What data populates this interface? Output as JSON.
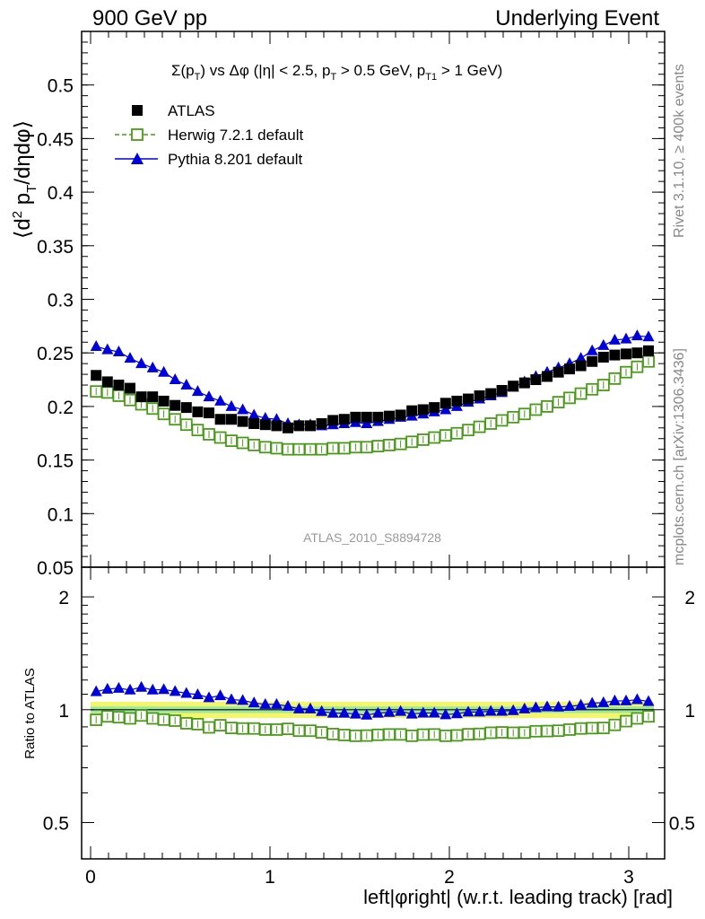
{
  "header": {
    "left": "900 GeV pp",
    "right": "Underlying Event"
  },
  "side_labels": {
    "rivet": "Rivet 3.1.10, ≥ 400k events",
    "mcplots": "mcplots.cern.ch [arXiv:1306.3436]"
  },
  "plot_title": "Σ(p_T) vs Δφ (|η| < 2.5, p_T > 0.5 GeV, p_T1 > 1 GeV)",
  "analysis_id": "ATLAS_2010_S8894728",
  "colors": {
    "data": "#000000",
    "herwig": "#4a9a1a",
    "pythia": "#0000dd",
    "band_outer": "#f5f56a",
    "band_inner": "#9ee89e"
  },
  "chart_data": [
    {
      "type": "scatter",
      "panel": "main",
      "ylabel": "⟨d² p_T/dηdφ⟩",
      "ylim": [
        0.05,
        0.55
      ],
      "yticks": [
        "0.05",
        "0.1",
        "0.15",
        "0.2",
        "0.25",
        "0.3",
        "0.35",
        "0.4",
        "0.45",
        "0.5"
      ],
      "xlim": [
        -0.05,
        3.2
      ],
      "legend_position": "top-left",
      "x": [
        0.031,
        0.094,
        0.157,
        0.22,
        0.283,
        0.346,
        0.408,
        0.471,
        0.534,
        0.597,
        0.66,
        0.723,
        0.785,
        0.848,
        0.911,
        0.974,
        1.037,
        1.1,
        1.162,
        1.225,
        1.288,
        1.351,
        1.414,
        1.477,
        1.539,
        1.602,
        1.665,
        1.728,
        1.791,
        1.854,
        1.916,
        1.979,
        2.042,
        2.105,
        2.168,
        2.231,
        2.293,
        2.356,
        2.419,
        2.482,
        2.545,
        2.608,
        2.67,
        2.733,
        2.796,
        2.859,
        2.922,
        2.985,
        3.047,
        3.11
      ],
      "series": [
        {
          "name": "ATLAS",
          "marker": "filled-square",
          "values": [
            0.229,
            0.223,
            0.22,
            0.217,
            0.209,
            0.209,
            0.205,
            0.201,
            0.199,
            0.195,
            0.194,
            0.188,
            0.188,
            0.186,
            0.184,
            0.183,
            0.182,
            0.18,
            0.182,
            0.182,
            0.184,
            0.187,
            0.188,
            0.19,
            0.19,
            0.19,
            0.191,
            0.192,
            0.196,
            0.197,
            0.199,
            0.203,
            0.205,
            0.207,
            0.21,
            0.212,
            0.215,
            0.219,
            0.222,
            0.225,
            0.228,
            0.232,
            0.235,
            0.238,
            0.242,
            0.246,
            0.248,
            0.249,
            0.25,
            0.252
          ]
        },
        {
          "name": "Herwig 7.2.1 default",
          "marker": "open-square",
          "line": "dashed",
          "values": [
            0.214,
            0.213,
            0.21,
            0.206,
            0.202,
            0.198,
            0.193,
            0.188,
            0.183,
            0.178,
            0.174,
            0.171,
            0.168,
            0.166,
            0.164,
            0.162,
            0.161,
            0.16,
            0.16,
            0.16,
            0.16,
            0.161,
            0.161,
            0.162,
            0.162,
            0.163,
            0.164,
            0.165,
            0.167,
            0.169,
            0.171,
            0.173,
            0.175,
            0.178,
            0.181,
            0.184,
            0.187,
            0.19,
            0.193,
            0.197,
            0.2,
            0.204,
            0.208,
            0.212,
            0.216,
            0.22,
            0.226,
            0.232,
            0.237,
            0.242
          ]
        },
        {
          "name": "Pythia 8.201 default",
          "marker": "filled-triangle",
          "line": "solid",
          "values": [
            0.256,
            0.253,
            0.251,
            0.245,
            0.24,
            0.236,
            0.232,
            0.225,
            0.22,
            0.214,
            0.209,
            0.205,
            0.2,
            0.197,
            0.192,
            0.189,
            0.188,
            0.184,
            0.183,
            0.183,
            0.182,
            0.183,
            0.184,
            0.185,
            0.184,
            0.186,
            0.188,
            0.19,
            0.191,
            0.193,
            0.195,
            0.197,
            0.2,
            0.204,
            0.207,
            0.21,
            0.213,
            0.218,
            0.223,
            0.228,
            0.232,
            0.236,
            0.24,
            0.245,
            0.252,
            0.257,
            0.262,
            0.263,
            0.266,
            0.265
          ]
        }
      ]
    },
    {
      "type": "scatter",
      "panel": "ratio",
      "ylabel": "Ratio to ATLAS",
      "xlabel": "left|φright| (w.r.t. leading track) [rad]",
      "ylim": [
        0.4,
        2.4
      ],
      "log_y": true,
      "yticks": [
        "0.5",
        "1",
        "2"
      ],
      "xticks": [
        "0",
        "1",
        "2",
        "3"
      ],
      "xlim": [
        -0.05,
        3.2
      ],
      "band": {
        "outer": [
          0.95,
          1.05
        ],
        "inner": [
          0.98,
          1.02
        ]
      },
      "series": [
        {
          "name": "Herwig 7.2.1 default",
          "values": [
            0.94,
            0.96,
            0.955,
            0.948,
            0.965,
            0.948,
            0.941,
            0.935,
            0.92,
            0.915,
            0.897,
            0.909,
            0.894,
            0.891,
            0.891,
            0.885,
            0.885,
            0.889,
            0.879,
            0.879,
            0.87,
            0.861,
            0.856,
            0.852,
            0.853,
            0.857,
            0.859,
            0.859,
            0.852,
            0.858,
            0.859,
            0.852,
            0.854,
            0.86,
            0.862,
            0.868,
            0.87,
            0.868,
            0.869,
            0.876,
            0.877,
            0.879,
            0.885,
            0.891,
            0.893,
            0.894,
            0.911,
            0.932,
            0.948,
            0.96
          ]
        },
        {
          "name": "Pythia 8.201 default",
          "values": [
            1.118,
            1.135,
            1.141,
            1.129,
            1.148,
            1.129,
            1.132,
            1.119,
            1.106,
            1.097,
            1.077,
            1.09,
            1.064,
            1.059,
            1.043,
            1.033,
            1.033,
            1.022,
            1.005,
            1.005,
            0.989,
            0.979,
            0.979,
            0.974,
            0.968,
            0.979,
            0.984,
            0.99,
            0.974,
            0.98,
            0.98,
            0.97,
            0.976,
            0.986,
            0.986,
            0.991,
            0.991,
            0.995,
            1.005,
            1.013,
            1.018,
            1.017,
            1.021,
            1.029,
            1.041,
            1.045,
            1.056,
            1.056,
            1.064,
            1.052
          ]
        }
      ]
    }
  ]
}
